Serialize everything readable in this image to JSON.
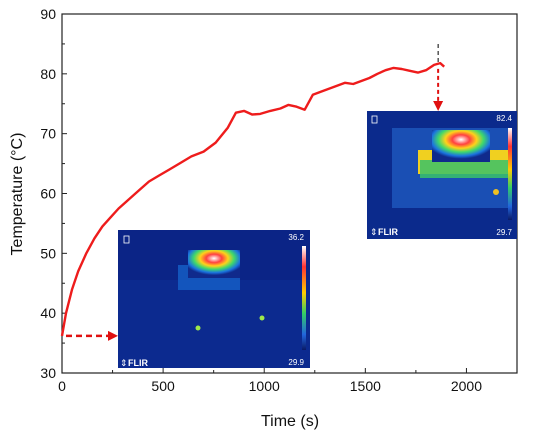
{
  "chart_data": {
    "type": "line",
    "xlabel": "Time (s)",
    "ylabel": "Temperature (°C)",
    "xlim": [
      0,
      2250
    ],
    "ylim": [
      30,
      90
    ],
    "x_ticks": [
      0,
      500,
      1000,
      1500,
      2000
    ],
    "y_ticks": [
      30,
      40,
      50,
      60,
      70,
      80,
      90
    ],
    "grid": false,
    "line_color": "#ee1c1c",
    "series": [
      {
        "x": [
          0,
          20,
          50,
          80,
          120,
          160,
          200,
          240,
          280,
          330,
          380,
          430,
          480,
          530,
          580,
          640,
          700,
          760,
          820,
          860,
          900,
          940,
          980,
          1030,
          1080,
          1120,
          1160,
          1200,
          1240,
          1280,
          1320,
          1360,
          1400,
          1440,
          1480,
          1520,
          1560,
          1600,
          1640,
          1680,
          1720,
          1760,
          1800,
          1840,
          1870,
          1890
        ],
        "y": [
          36.2,
          40,
          44,
          47,
          50,
          52.5,
          54.5,
          56,
          57.5,
          59,
          60.5,
          62,
          63,
          64,
          65,
          66.2,
          67,
          68.5,
          71,
          73.5,
          73.8,
          73.2,
          73.3,
          73.8,
          74.2,
          74.8,
          74.5,
          74,
          76.5,
          77,
          77.5,
          78,
          78.5,
          78.3,
          78.8,
          79.3,
          80,
          80.6,
          81,
          80.8,
          80.5,
          80.2,
          80.6,
          81.5,
          81.8,
          81.2
        ]
      }
    ],
    "annotations": {
      "inset_start": {
        "top_value": "36.2",
        "bottom_value": "29.9",
        "brand": "FLIR",
        "pointer_time": 0,
        "pointer_temp": 36.2
      },
      "inset_end": {
        "top_value": "82.4",
        "bottom_value": "29.7",
        "brand": "FLIR",
        "pointer_time": 1860,
        "pointer_temp": 81.5
      }
    }
  }
}
